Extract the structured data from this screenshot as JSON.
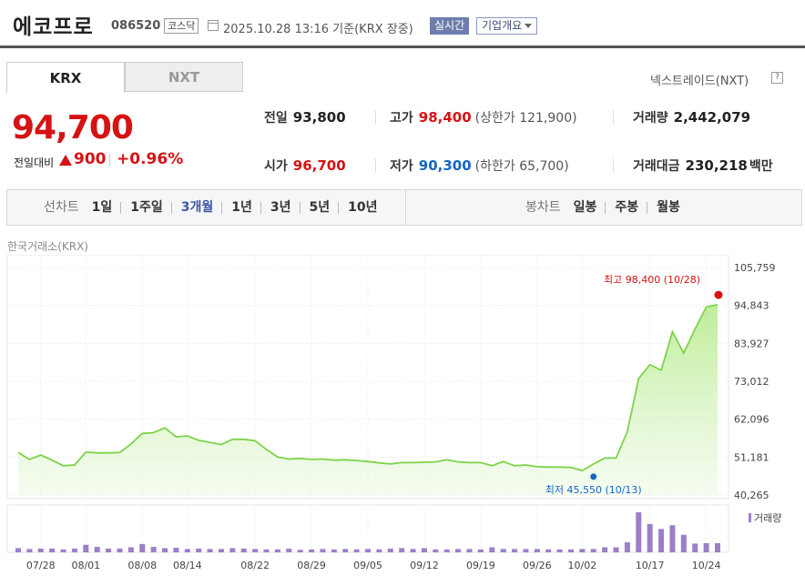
{
  "header": {
    "name": "에코프로",
    "code": "086520",
    "market": "코스닥",
    "datetime": "2025.10.28 13:16",
    "basis": "기준(KRX 장중)",
    "realtime_label": "실시간",
    "company_label": "기업개요"
  },
  "tabs": {
    "krx": "KRX",
    "nxt": "NXT"
  },
  "nxt_link": "넥스트레이드(NXT)",
  "help": "?",
  "price": {
    "current": "94,700",
    "change_label": "전일대비",
    "change_value": "900",
    "change_pct": "+0.96%"
  },
  "stats": {
    "prev_close_label": "전일",
    "prev_close": "93,800",
    "high_label": "고가",
    "high": "98,400",
    "upper_limit": "(상한가 121,900)",
    "volume_label": "거래량",
    "volume": "2,442,079",
    "open_label": "시가",
    "open": "96,700",
    "low_label": "저가",
    "low": "90,300",
    "lower_limit": "(하한가 65,700)",
    "value_label": "거래대금",
    "value": "230,218",
    "value_unit": "백만"
  },
  "period": {
    "label": "선차트",
    "items": [
      "1일",
      "1주일",
      "3개월",
      "1년",
      "3년",
      "5년",
      "10년"
    ],
    "active": "3개월"
  },
  "candle": {
    "label": "봉차트",
    "items": [
      "일봉",
      "주봉",
      "월봉"
    ]
  },
  "exchange_label": "한국거래소(KRX)",
  "colors": {
    "up": "#d51313",
    "down": "#1366c4",
    "line": "#7dd34a",
    "volume": "#9b7fc9"
  },
  "chart_data": {
    "type": "area",
    "y_ticks": [
      105759,
      94843,
      83927,
      73012,
      62096,
      51181,
      40265
    ],
    "y_tick_labels": [
      "105,759",
      "94,843",
      "83,927",
      "73,012",
      "62,096",
      "51,181",
      "40,265"
    ],
    "ylim": [
      40265,
      105759
    ],
    "x_tick_labels": [
      "07/28",
      "08/01",
      "08/08",
      "08/14",
      "08/22",
      "08/29",
      "09/05",
      "09/12",
      "09/19",
      "09/26",
      "10/02",
      "10/17",
      "10/24"
    ],
    "x_tick_index": [
      2,
      6,
      11,
      15,
      21,
      26,
      31,
      36,
      41,
      46,
      50,
      56,
      61
    ],
    "values": [
      52500,
      50500,
      51800,
      50300,
      48700,
      48900,
      52600,
      52400,
      52400,
      52500,
      55000,
      58000,
      58200,
      59600,
      57000,
      57300,
      56000,
      55400,
      54800,
      56300,
      56300,
      55900,
      53400,
      51200,
      50600,
      50800,
      50500,
      50600,
      50300,
      50400,
      50200,
      49900,
      49500,
      49200,
      49600,
      49600,
      49700,
      49800,
      50400,
      49800,
      49600,
      49600,
      48700,
      49900,
      48700,
      48900,
      48400,
      48300,
      48300,
      48200,
      47300,
      49200,
      50900,
      50900,
      58500,
      73800,
      77800,
      76200,
      87300,
      81100,
      88000,
      94400,
      95100
    ],
    "volumes": [
      1.0,
      0.8,
      0.9,
      0.9,
      0.7,
      0.9,
      1.8,
      1.3,
      0.9,
      0.9,
      1.2,
      2.0,
      1.3,
      1.0,
      1.1,
      0.8,
      0.9,
      0.8,
      0.8,
      1.0,
      0.9,
      0.8,
      0.7,
      0.7,
      0.9,
      0.6,
      0.7,
      0.8,
      0.7,
      0.8,
      0.7,
      0.8,
      0.7,
      0.9,
      1.0,
      0.8,
      1.0,
      0.7,
      0.7,
      0.8,
      0.8,
      0.7,
      1.2,
      0.8,
      0.8,
      0.8,
      0.8,
      0.7,
      0.7,
      0.7,
      0.8,
      0.8,
      1.2,
      1.2,
      2.4,
      9.6,
      6.8,
      5.6,
      6.5,
      4.2,
      2.1,
      2.2,
      2.2
    ],
    "max_annotation": "최고 98,400 (10/28)",
    "min_annotation": "최저 45,550 (10/13)",
    "max_value": 98400,
    "min_value": 45550,
    "min_index": 51,
    "volume_legend": "거래량",
    "grid": true
  }
}
